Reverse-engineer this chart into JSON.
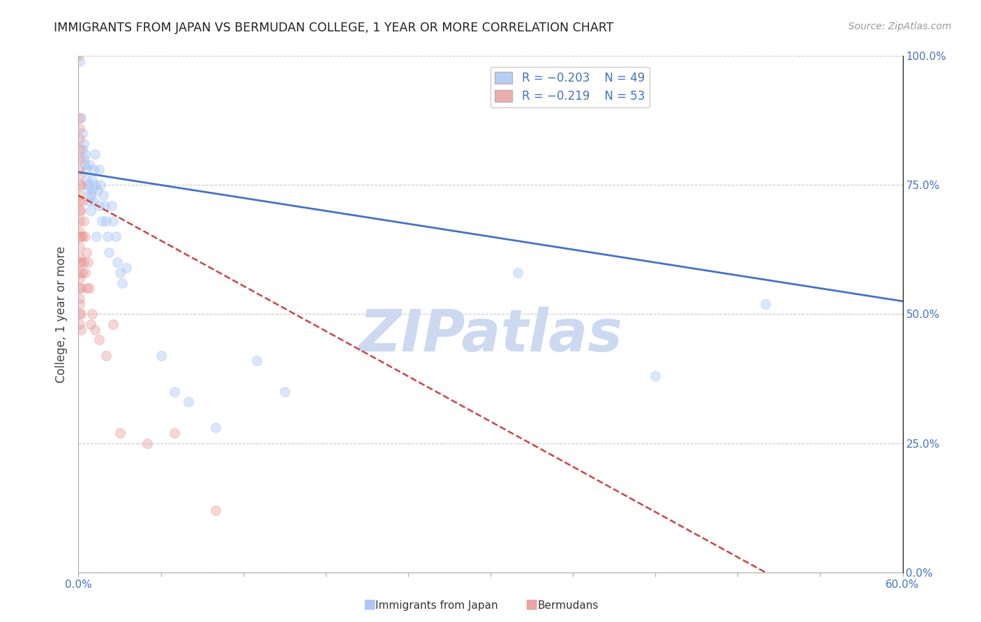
{
  "title": "IMMIGRANTS FROM JAPAN VS BERMUDAN COLLEGE, 1 YEAR OR MORE CORRELATION CHART",
  "source": "Source: ZipAtlas.com",
  "ylabel": "College, 1 year or more",
  "xlim": [
    0.0,
    0.6
  ],
  "ylim": [
    0.0,
    1.0
  ],
  "xtick_vals": [
    0.0,
    0.06,
    0.12,
    0.18,
    0.24,
    0.3,
    0.36,
    0.42,
    0.48,
    0.54,
    0.6
  ],
  "xtick_labels_shown": {
    "0.0": "0.0%",
    "0.6": "60.0%"
  },
  "ylabel_ticks": [
    "0.0%",
    "25.0%",
    "50.0%",
    "75.0%",
    "100.0%"
  ],
  "ylabel_vals": [
    0.0,
    0.25,
    0.5,
    0.75,
    1.0
  ],
  "legend_blue_label": "Immigrants from Japan",
  "legend_pink_label": "Bermudans",
  "legend_blue_R": "R = −0.203",
  "legend_blue_N": "N = 49",
  "legend_pink_R": "R = −0.219",
  "legend_pink_N": "N = 53",
  "blue_scatter": [
    [
      0.001,
      0.99
    ],
    [
      0.002,
      0.88
    ],
    [
      0.003,
      0.85
    ],
    [
      0.003,
      0.82
    ],
    [
      0.004,
      0.83
    ],
    [
      0.004,
      0.8
    ],
    [
      0.005,
      0.81
    ],
    [
      0.005,
      0.79
    ],
    [
      0.006,
      0.78
    ],
    [
      0.006,
      0.76
    ],
    [
      0.007,
      0.75
    ],
    [
      0.007,
      0.74
    ],
    [
      0.008,
      0.79
    ],
    [
      0.008,
      0.72
    ],
    [
      0.009,
      0.73
    ],
    [
      0.009,
      0.7
    ],
    [
      0.01,
      0.76
    ],
    [
      0.01,
      0.74
    ],
    [
      0.011,
      0.78
    ],
    [
      0.011,
      0.72
    ],
    [
      0.012,
      0.81
    ],
    [
      0.012,
      0.75
    ],
    [
      0.013,
      0.65
    ],
    [
      0.014,
      0.74
    ],
    [
      0.015,
      0.78
    ],
    [
      0.015,
      0.71
    ],
    [
      0.016,
      0.75
    ],
    [
      0.017,
      0.68
    ],
    [
      0.018,
      0.73
    ],
    [
      0.019,
      0.71
    ],
    [
      0.02,
      0.68
    ],
    [
      0.021,
      0.65
    ],
    [
      0.022,
      0.62
    ],
    [
      0.024,
      0.71
    ],
    [
      0.025,
      0.68
    ],
    [
      0.027,
      0.65
    ],
    [
      0.028,
      0.6
    ],
    [
      0.03,
      0.58
    ],
    [
      0.032,
      0.56
    ],
    [
      0.035,
      0.59
    ],
    [
      0.06,
      0.42
    ],
    [
      0.07,
      0.35
    ],
    [
      0.08,
      0.33
    ],
    [
      0.13,
      0.41
    ],
    [
      0.15,
      0.35
    ],
    [
      0.32,
      0.58
    ],
    [
      0.42,
      0.38
    ],
    [
      0.5,
      0.52
    ],
    [
      0.1,
      0.28
    ]
  ],
  "pink_scatter": [
    [
      0.0,
      1.0
    ],
    [
      0.001,
      0.88
    ],
    [
      0.001,
      0.86
    ],
    [
      0.001,
      0.84
    ],
    [
      0.001,
      0.82
    ],
    [
      0.001,
      0.8
    ],
    [
      0.001,
      0.78
    ],
    [
      0.001,
      0.77
    ],
    [
      0.001,
      0.75
    ],
    [
      0.001,
      0.73
    ],
    [
      0.001,
      0.72
    ],
    [
      0.001,
      0.7
    ],
    [
      0.001,
      0.68
    ],
    [
      0.001,
      0.66
    ],
    [
      0.001,
      0.65
    ],
    [
      0.001,
      0.63
    ],
    [
      0.001,
      0.61
    ],
    [
      0.001,
      0.6
    ],
    [
      0.001,
      0.58
    ],
    [
      0.001,
      0.57
    ],
    [
      0.001,
      0.55
    ],
    [
      0.001,
      0.53
    ],
    [
      0.001,
      0.52
    ],
    [
      0.002,
      0.75
    ],
    [
      0.002,
      0.7
    ],
    [
      0.002,
      0.65
    ],
    [
      0.002,
      0.6
    ],
    [
      0.002,
      0.55
    ],
    [
      0.002,
      0.5
    ],
    [
      0.002,
      0.47
    ],
    [
      0.003,
      0.72
    ],
    [
      0.003,
      0.65
    ],
    [
      0.003,
      0.58
    ],
    [
      0.004,
      0.68
    ],
    [
      0.004,
      0.6
    ],
    [
      0.005,
      0.65
    ],
    [
      0.005,
      0.58
    ],
    [
      0.006,
      0.62
    ],
    [
      0.006,
      0.55
    ],
    [
      0.007,
      0.6
    ],
    [
      0.008,
      0.55
    ],
    [
      0.009,
      0.48
    ],
    [
      0.01,
      0.5
    ],
    [
      0.012,
      0.47
    ],
    [
      0.015,
      0.45
    ],
    [
      0.02,
      0.42
    ],
    [
      0.025,
      0.48
    ],
    [
      0.03,
      0.27
    ],
    [
      0.05,
      0.25
    ],
    [
      0.07,
      0.27
    ],
    [
      0.1,
      0.12
    ],
    [
      0.001,
      0.5
    ],
    [
      0.001,
      0.48
    ]
  ],
  "blue_line_x": [
    0.0,
    0.6
  ],
  "blue_line_y": [
    0.775,
    0.525
  ],
  "pink_line_x": [
    0.0,
    0.5
  ],
  "pink_line_y": [
    0.73,
    0.0
  ],
  "watermark_text": "ZIPatlas",
  "dot_alpha": 0.4,
  "dot_size": 100,
  "blue_color": "#a4c2f4",
  "pink_color": "#ea9999",
  "blue_line_color": "#4472c4",
  "pink_line_color": "#cc4444",
  "title_color": "#222222",
  "tick_color": "#4472c4",
  "grid_color": "#bbbbbb",
  "watermark_color": "#ccd9f0",
  "background_color": "#ffffff"
}
